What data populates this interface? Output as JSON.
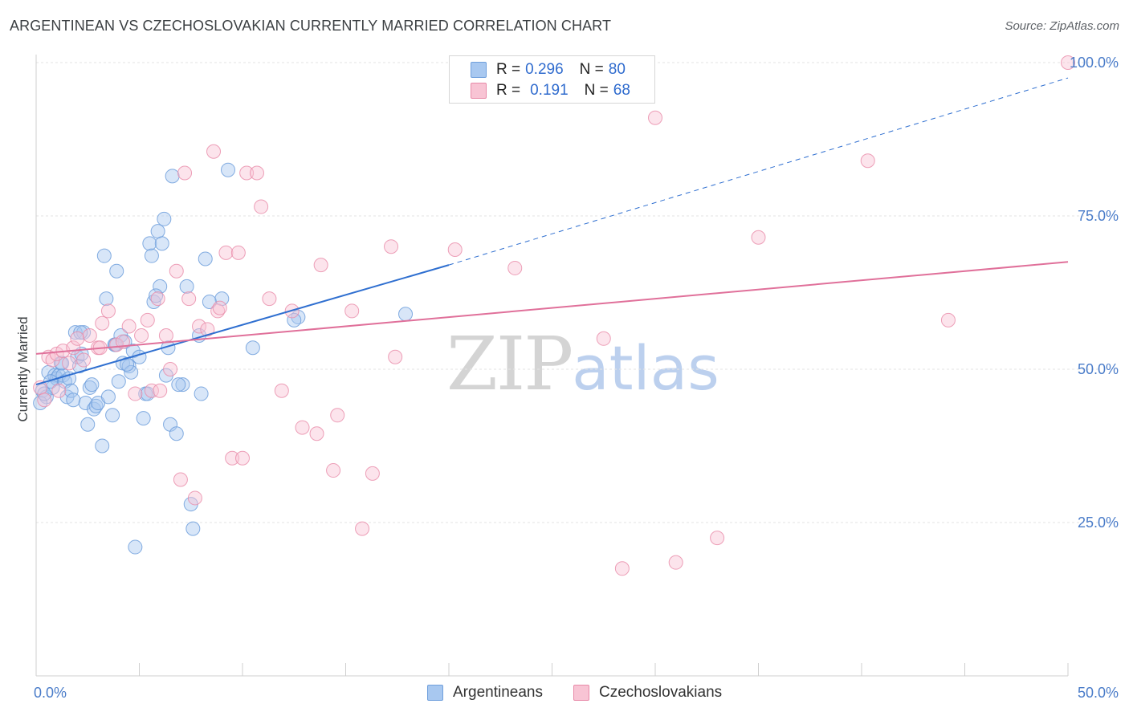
{
  "header": {
    "title": "ARGENTINEAN VS CZECHOSLOVAKIAN CURRENTLY MARRIED CORRELATION CHART",
    "source": "Source: ZipAtlas.com"
  },
  "watermark": {
    "zip": "ZIP",
    "atlas": "atlas"
  },
  "legend": {
    "rows": [
      {
        "r_label": "R =",
        "r_value": "0.296",
        "n_label": "N =",
        "n_value": "80",
        "color": "#a8c8f0",
        "border": "#6f9fdc"
      },
      {
        "r_label": "R =",
        "r_value": "0.191",
        "n_label": "N =",
        "n_value": "68",
        "color": "#f8c4d4",
        "border": "#e88aa8"
      }
    ]
  },
  "bottom_legend": {
    "items": [
      {
        "label": "Argentineans",
        "color": "#a8c8f0",
        "border": "#6f9fdc"
      },
      {
        "label": "Czechoslovakians",
        "color": "#f8c4d4",
        "border": "#e88aa8"
      }
    ]
  },
  "chart_data": {
    "type": "scatter",
    "ylabel": "Currently Married",
    "xlim": [
      0,
      50
    ],
    "ylim": [
      0,
      100
    ],
    "x_tick_labels": [
      {
        "value": 0,
        "label": "0.0%"
      },
      {
        "value": 50,
        "label": "50.0%"
      }
    ],
    "y_tick_labels": [
      {
        "value": 25,
        "label": "25.0%"
      },
      {
        "value": 50,
        "label": "50.0%"
      },
      {
        "value": 75,
        "label": "75.0%"
      },
      {
        "value": 100,
        "label": "100.0%"
      }
    ],
    "x_minor_ticks": [
      0,
      5,
      10,
      15,
      20,
      25,
      30,
      35,
      40,
      45,
      50
    ],
    "grid": true,
    "colors": {
      "argentineans": "#6f9fdc",
      "argentineans_fill": "#a8c8f0",
      "argentineans_line": "#2f6fd0",
      "czechoslovakians": "#e88aa8",
      "czechoslovakians_fill": "#f8c4d4",
      "czechoslovakians_line": "#e0709a"
    },
    "series": [
      {
        "name": "Argentineans",
        "trend": {
          "x0": 0,
          "y0": 47.5,
          "x1": 20,
          "y1": 67,
          "dashed_to_x": 50,
          "dashed_to_y": 97.5
        },
        "points": [
          [
            0.3,
            46.5
          ],
          [
            0.5,
            45.5
          ],
          [
            0.6,
            49.5
          ],
          [
            0.8,
            47.0
          ],
          [
            0.9,
            49.0
          ],
          [
            1.0,
            48.5
          ],
          [
            1.1,
            49.0
          ],
          [
            1.2,
            51.0
          ],
          [
            1.3,
            49.0
          ],
          [
            1.4,
            48.0
          ],
          [
            1.5,
            45.5
          ],
          [
            1.6,
            48.5
          ],
          [
            1.7,
            46.5
          ],
          [
            1.8,
            45.0
          ],
          [
            1.9,
            56.0
          ],
          [
            2.0,
            52.0
          ],
          [
            2.1,
            50.5
          ],
          [
            2.2,
            52.5
          ],
          [
            2.3,
            56.0
          ],
          [
            2.4,
            44.5
          ],
          [
            2.5,
            41.0
          ],
          [
            2.6,
            47.0
          ],
          [
            2.7,
            47.5
          ],
          [
            2.8,
            43.5
          ],
          [
            2.9,
            44.0
          ],
          [
            3.0,
            44.5
          ],
          [
            3.2,
            37.5
          ],
          [
            3.3,
            68.5
          ],
          [
            3.4,
            61.5
          ],
          [
            3.5,
            45.5
          ],
          [
            3.7,
            42.5
          ],
          [
            3.8,
            54.0
          ],
          [
            3.9,
            66.0
          ],
          [
            4.0,
            48.0
          ],
          [
            4.1,
            55.5
          ],
          [
            4.2,
            51.0
          ],
          [
            4.3,
            54.5
          ],
          [
            4.5,
            50.5
          ],
          [
            4.6,
            49.5
          ],
          [
            4.7,
            53.0
          ],
          [
            4.8,
            21.0
          ],
          [
            5.0,
            52.0
          ],
          [
            5.2,
            42.0
          ],
          [
            5.3,
            46.0
          ],
          [
            5.4,
            46.0
          ],
          [
            5.5,
            70.5
          ],
          [
            5.6,
            68.5
          ],
          [
            5.7,
            61.0
          ],
          [
            5.9,
            72.5
          ],
          [
            6.0,
            63.5
          ],
          [
            6.1,
            70.5
          ],
          [
            6.2,
            74.5
          ],
          [
            6.3,
            49.0
          ],
          [
            6.4,
            53.5
          ],
          [
            6.5,
            41.0
          ],
          [
            6.6,
            81.5
          ],
          [
            6.8,
            39.5
          ],
          [
            7.1,
            47.5
          ],
          [
            7.3,
            63.5
          ],
          [
            7.5,
            28.0
          ],
          [
            7.6,
            24.0
          ],
          [
            7.9,
            55.5
          ],
          [
            8.0,
            46.0
          ],
          [
            8.2,
            68.0
          ],
          [
            9.0,
            61.5
          ],
          [
            9.3,
            82.5
          ],
          [
            10.5,
            53.5
          ],
          [
            12.7,
            58.5
          ],
          [
            17.9,
            59.0
          ],
          [
            0.2,
            44.5
          ],
          [
            0.4,
            46.0
          ],
          [
            0.7,
            48.0
          ],
          [
            1.25,
            51.0
          ],
          [
            2.15,
            56.0
          ],
          [
            3.85,
            54.0
          ],
          [
            4.4,
            50.8
          ],
          [
            5.8,
            62.0
          ],
          [
            6.9,
            47.5
          ],
          [
            8.4,
            61.0
          ],
          [
            12.5,
            58.0
          ]
        ]
      },
      {
        "name": "Czechoslovakians",
        "trend": {
          "x0": 0,
          "y0": 52.5,
          "x1": 50,
          "y1": 67.5
        },
        "points": [
          [
            0.2,
            47.0
          ],
          [
            0.4,
            45.0
          ],
          [
            0.6,
            52.0
          ],
          [
            0.8,
            51.5
          ],
          [
            1.0,
            52.5
          ],
          [
            1.1,
            46.5
          ],
          [
            1.3,
            53.0
          ],
          [
            1.6,
            51.0
          ],
          [
            1.8,
            53.5
          ],
          [
            2.0,
            55.0
          ],
          [
            2.3,
            51.5
          ],
          [
            2.6,
            55.5
          ],
          [
            3.0,
            53.5
          ],
          [
            3.2,
            57.5
          ],
          [
            3.5,
            59.5
          ],
          [
            3.9,
            54.0
          ],
          [
            4.2,
            54.5
          ],
          [
            4.5,
            57.0
          ],
          [
            4.8,
            46.0
          ],
          [
            5.1,
            55.5
          ],
          [
            5.4,
            58.0
          ],
          [
            5.6,
            46.5
          ],
          [
            5.9,
            61.5
          ],
          [
            6.0,
            46.5
          ],
          [
            6.3,
            55.5
          ],
          [
            6.5,
            50.0
          ],
          [
            6.8,
            66.0
          ],
          [
            7.0,
            32.0
          ],
          [
            7.2,
            82.0
          ],
          [
            7.4,
            61.5
          ],
          [
            7.7,
            29.0
          ],
          [
            7.9,
            57.0
          ],
          [
            8.3,
            56.5
          ],
          [
            8.6,
            85.5
          ],
          [
            8.8,
            59.5
          ],
          [
            9.2,
            69.0
          ],
          [
            9.5,
            35.5
          ],
          [
            9.8,
            69.0
          ],
          [
            10.0,
            35.5
          ],
          [
            10.2,
            82.0
          ],
          [
            10.7,
            82.0
          ],
          [
            10.9,
            76.5
          ],
          [
            11.3,
            61.5
          ],
          [
            11.9,
            46.5
          ],
          [
            12.4,
            59.5
          ],
          [
            12.9,
            40.5
          ],
          [
            13.6,
            39.5
          ],
          [
            13.8,
            67.0
          ],
          [
            14.4,
            33.5
          ],
          [
            14.6,
            42.5
          ],
          [
            15.3,
            59.5
          ],
          [
            15.8,
            24.0
          ],
          [
            16.3,
            33.0
          ],
          [
            17.2,
            70.0
          ],
          [
            17.4,
            52.0
          ],
          [
            20.3,
            69.5
          ],
          [
            23.2,
            66.5
          ],
          [
            27.5,
            55.0
          ],
          [
            28.4,
            17.5
          ],
          [
            30.0,
            91.0
          ],
          [
            31.0,
            18.5
          ],
          [
            33.0,
            22.5
          ],
          [
            35.0,
            71.5
          ],
          [
            40.3,
            84.0
          ],
          [
            44.2,
            58.0
          ],
          [
            50.0,
            100.0
          ],
          [
            8.9,
            60.0
          ],
          [
            3.1,
            53.5
          ]
        ]
      }
    ]
  }
}
